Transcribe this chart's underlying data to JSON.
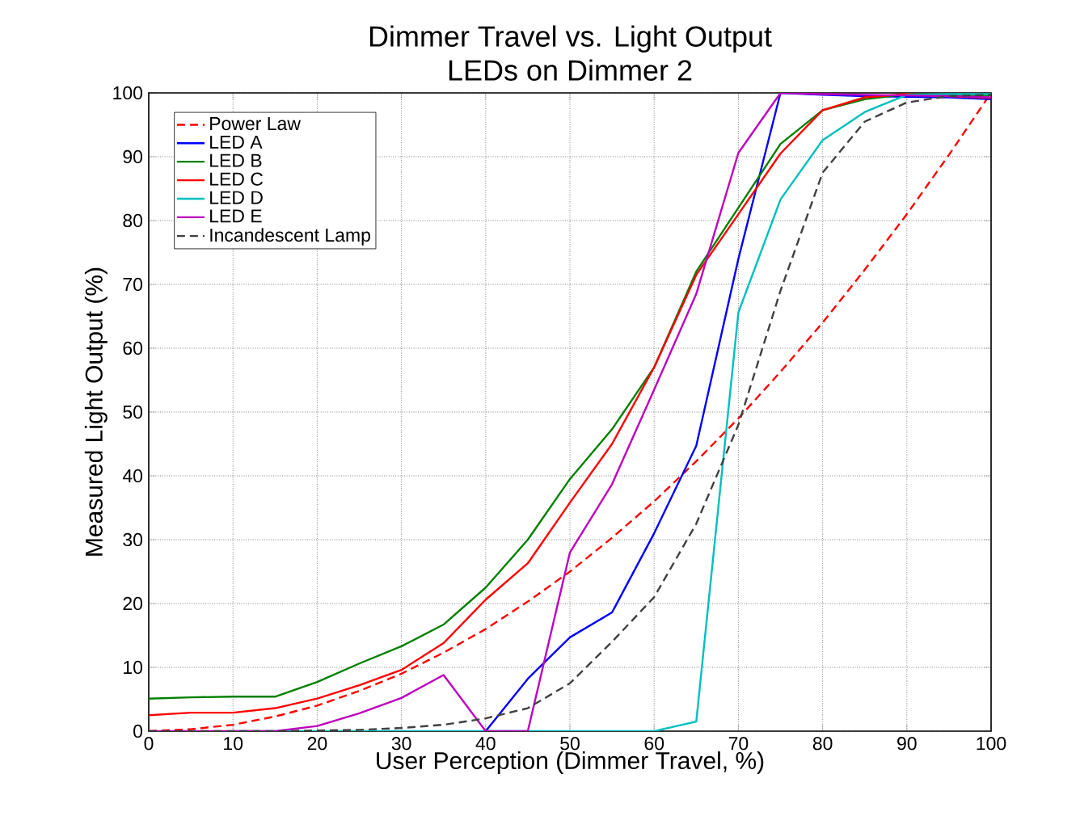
{
  "chart_data": {
    "type": "line",
    "title": "Dimmer Travel vs. Light Output",
    "subtitle": "LEDs on Dimmer 2",
    "xlabel": "User Perception (Dimmer Travel, %)",
    "ylabel": "Measured Light Output (%)",
    "x": [
      0,
      5,
      10,
      15,
      20,
      25,
      30,
      35,
      40,
      45,
      50,
      55,
      60,
      65,
      70,
      75,
      80,
      85,
      90,
      95,
      100
    ],
    "xlim": [
      0,
      100
    ],
    "ylim": [
      0,
      100
    ],
    "xticks": [
      0,
      10,
      20,
      30,
      40,
      50,
      60,
      70,
      80,
      90,
      100
    ],
    "yticks": [
      0,
      10,
      20,
      30,
      40,
      50,
      60,
      70,
      80,
      90,
      100
    ],
    "grid": true,
    "legend": "top left",
    "series": [
      {
        "name": "Power Law",
        "color": "#ff0000",
        "line_style": "dashed",
        "values": [
          0,
          0.3,
          1,
          2.3,
          4,
          6.3,
          9,
          12.3,
          16,
          20.3,
          25,
          30.3,
          36,
          42.3,
          49,
          56.3,
          64,
          72.3,
          81,
          90.3,
          100
        ]
      },
      {
        "name": "LED A",
        "color": "#0000ff",
        "values": [
          null,
          null,
          null,
          null,
          null,
          null,
          null,
          null,
          0,
          8.2,
          14.7,
          18.6,
          31,
          44.7,
          74,
          100,
          99.7,
          99.5,
          99.4,
          99.3,
          99
        ]
      },
      {
        "name": "LED B",
        "color": "#008000",
        "values": [
          5.1,
          5.3,
          5.4,
          5.4,
          7.7,
          10.6,
          13.3,
          16.7,
          22.5,
          30,
          39.5,
          47.3,
          57,
          72,
          82,
          92,
          97.3,
          99,
          99.8,
          99.7,
          99.6
        ]
      },
      {
        "name": "LED C",
        "color": "#ff0000",
        "values": [
          2.5,
          2.9,
          2.9,
          3.6,
          5.1,
          7.2,
          9.6,
          13.8,
          20.6,
          26.3,
          35.8,
          45,
          57,
          71.5,
          81,
          90.5,
          97.3,
          99.3,
          99.8,
          99.5,
          99.2
        ]
      },
      {
        "name": "LED D",
        "color": "#00bfbf",
        "values": [
          null,
          null,
          0,
          0,
          0,
          0,
          0,
          0,
          0,
          0,
          0,
          0,
          0,
          1.5,
          65.6,
          83.3,
          92.6,
          97,
          99.7,
          99.8,
          99.8
        ]
      },
      {
        "name": "LED E",
        "color": "#bf00bf",
        "values": [
          0,
          0,
          0,
          0,
          0.8,
          2.8,
          5.2,
          8.8,
          0,
          0,
          28,
          38.7,
          53.5,
          68.5,
          90.6,
          100,
          99.8,
          99.7,
          99.6,
          99.5,
          99.3
        ]
      },
      {
        "name": "Incandescent Lamp",
        "color": "#404040",
        "line_style": "dashed",
        "values": [
          0,
          0,
          0,
          0,
          0.1,
          0.2,
          0.5,
          1,
          2,
          3.6,
          7.5,
          14,
          21,
          32.5,
          48,
          69,
          87.5,
          95.5,
          98.5,
          99.5,
          99.7
        ]
      }
    ]
  }
}
